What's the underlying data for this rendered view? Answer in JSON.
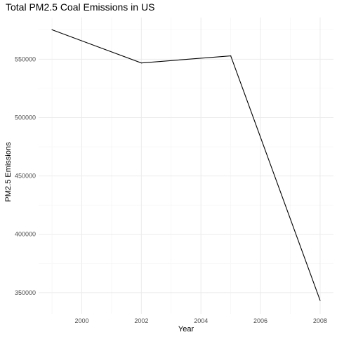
{
  "chart_data": {
    "type": "line",
    "title": "Total PM2.5 Coal Emissions in US",
    "xlabel": "Year",
    "ylabel": "PM2.5 Emissions",
    "x": [
      1999,
      2002,
      2005,
      2008
    ],
    "series": [
      {
        "values": [
          575207,
          546789,
          552881,
          343432
        ]
      }
    ],
    "x_ticks": [
      "2000",
      "2002",
      "2004",
      "2006",
      "2008"
    ],
    "x_tick_values": [
      2000,
      2002,
      2004,
      2006,
      2008
    ],
    "y_ticks": [
      "350000",
      "400000",
      "450000",
      "500000",
      "550000"
    ],
    "y_tick_values": [
      350000,
      400000,
      450000,
      500000,
      550000
    ],
    "xlim": [
      1998.55,
      2008.45
    ],
    "ylim": [
      331861,
      585680
    ],
    "grid": true,
    "line_color": "#000000",
    "grid_color": "#ebebeb",
    "background": "#ffffff"
  }
}
